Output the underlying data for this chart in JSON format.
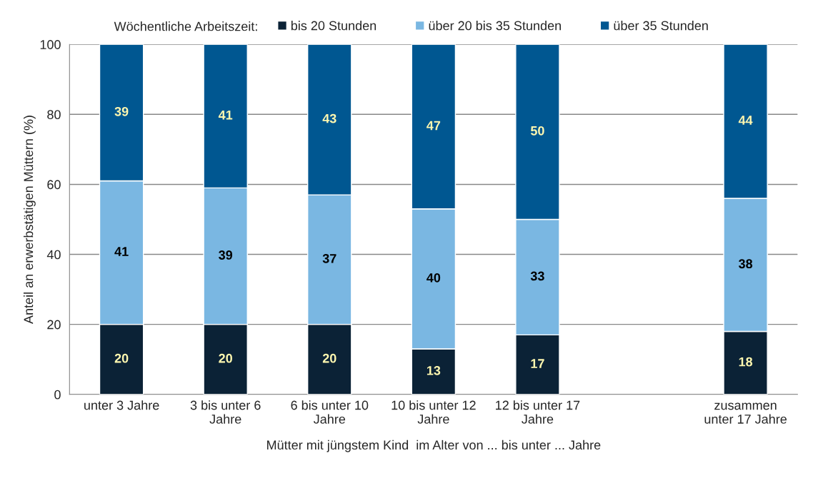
{
  "chart_data": {
    "type": "bar",
    "stacked": true,
    "xlabel": "Mütter mit jüngstem Kind  im Alter von ... bis unter ... Jahre",
    "ylabel": "Anteil an erwerbstätigen Müttern (%)",
    "legend_title": "Wöchentliche Arbeitszeit:",
    "categories": [
      "unter 3 Jahre",
      "3 bis unter 6\nJahre",
      "6 bis unter 10\nJahre",
      "10 bis unter 12\nJahre",
      "12 bis unter 17\nJahre",
      null,
      "zusammen\nunter 17 Jahre"
    ],
    "series": [
      {
        "name": "bis 20 Stunden",
        "color": "#0b2236",
        "values": [
          20,
          20,
          20,
          13,
          17,
          null,
          18
        ]
      },
      {
        "name": "über 20 bis 35 Stunden",
        "color": "#7ab7e2",
        "values": [
          41,
          39,
          37,
          40,
          33,
          null,
          38
        ]
      },
      {
        "name": "über 35 Stunden",
        "color": "#005791",
        "values": [
          39,
          41,
          43,
          47,
          50,
          null,
          44
        ]
      }
    ],
    "ylim": [
      0,
      100
    ],
    "yticks": [
      0,
      20,
      40,
      60,
      80,
      100
    ],
    "grid": "y",
    "legend": "top",
    "data_labels": true
  }
}
